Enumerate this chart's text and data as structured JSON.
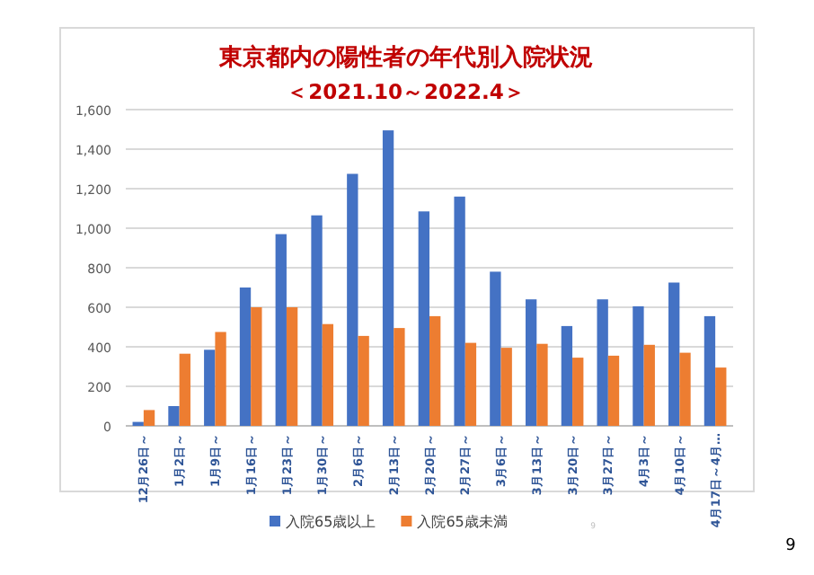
{
  "chart_data": {
    "type": "bar",
    "title": "東京都内の陽性者の年代別入院状況",
    "subtitle": "＜2021.10～2022.4＞",
    "categories": [
      "12月26日～",
      "1月2日～",
      "1月9日～",
      "1月16日～",
      "1月23日～",
      "1月30日～",
      "2月6日～",
      "2月13日～",
      "2月20日～",
      "2月27日～",
      "3月6日～",
      "3月13日～",
      "3月20日～",
      "3月27日～",
      "4月3日～",
      "4月10日～",
      "4月17日～4月…"
    ],
    "series": [
      {
        "name": "入院65歳以上",
        "color": "#4472c4",
        "values": [
          20,
          100,
          385,
          700,
          970,
          1065,
          1275,
          1495,
          1085,
          1160,
          780,
          640,
          505,
          640,
          605,
          725,
          555
        ]
      },
      {
        "name": "入院65歳未満",
        "color": "#ed7d31",
        "values": [
          80,
          365,
          475,
          600,
          600,
          515,
          455,
          495,
          555,
          420,
          395,
          415,
          345,
          355,
          410,
          370,
          295
        ]
      }
    ],
    "ylim": [
      0,
      1600
    ],
    "yticks": [
      {
        "value": 0,
        "label": "0"
      },
      {
        "value": 200,
        "label": "200"
      },
      {
        "value": 400,
        "label": "400"
      },
      {
        "value": 600,
        "label": "600"
      },
      {
        "value": 800,
        "label": "800"
      },
      {
        "value": 1000,
        "label": "1,000"
      },
      {
        "value": 1200,
        "label": "1,200"
      },
      {
        "value": 1400,
        "label": "1,400"
      },
      {
        "value": 1600,
        "label": "1,600"
      }
    ],
    "grid": "y",
    "legend": "bottom",
    "annotations": [
      "9",
      "9"
    ]
  }
}
